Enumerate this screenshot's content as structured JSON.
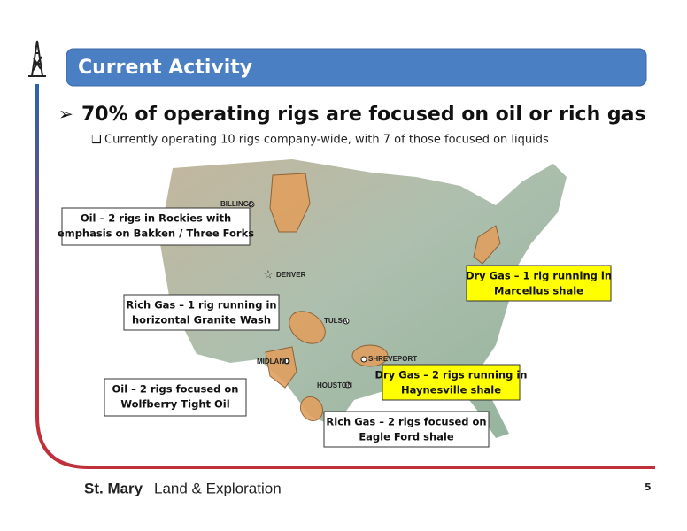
{
  "header": {
    "title": "Current Activity"
  },
  "bullet": "70% of operating rigs are focused on oil or rich gas",
  "sub_bullet": "Currently operating 10 rigs company-wide, with 7 of those focused on liquids",
  "map": {
    "cities": [
      "BILLINGS",
      "DENVER",
      "TULSA",
      "MIDLAND",
      "SHREVEPORT",
      "HOUSTON"
    ]
  },
  "callouts": [
    {
      "lines": [
        "Oil – 2 rigs in Rockies with",
        "emphasis on Bakken / Three Forks"
      ]
    },
    {
      "lines": [
        "Rich Gas – 1 rig running in",
        "horizontal Granite Wash"
      ]
    },
    {
      "lines": [
        "Oil – 2 rigs focused on",
        "Wolfberry Tight Oil"
      ]
    },
    {
      "lines": [
        "Dry Gas – 1 rig running in",
        "Marcellus shale"
      ]
    },
    {
      "lines": [
        "Dry Gas – 2 rigs running in",
        "Haynesville shale"
      ]
    },
    {
      "lines": [
        "Rich Gas – 2 rigs focused on",
        "Eagle Ford shale"
      ]
    }
  ],
  "footer": {
    "company": "St. Mary",
    "company_rest": "Land & Exploration",
    "page": "5"
  }
}
